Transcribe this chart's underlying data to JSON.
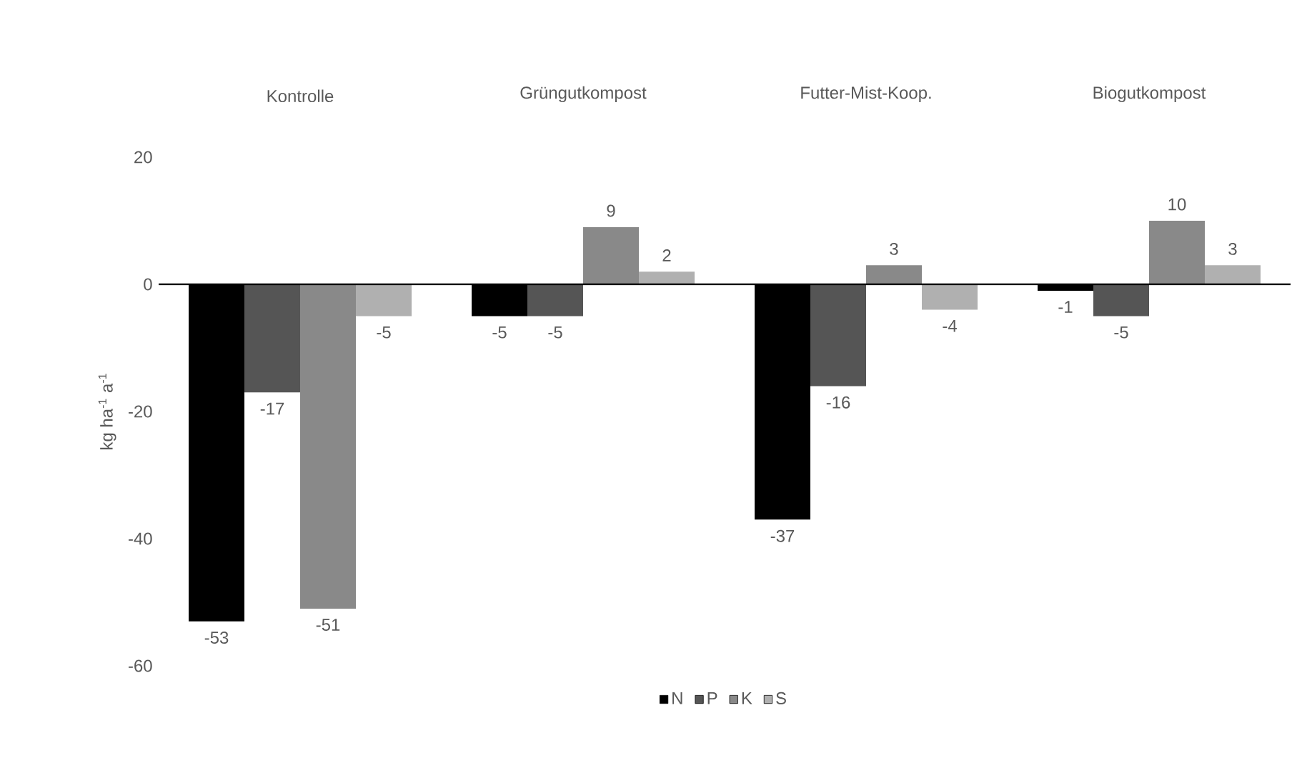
{
  "chart_data": {
    "type": "bar",
    "ylabel": "kg  ha$^{-1}$ a$^{-1}$",
    "categories": [
      "Kontrolle",
      "Grüngutkompost",
      "Futter-Mist-Koop.",
      "Biogutkompost"
    ],
    "series": [
      {
        "name": "N",
        "color": "#000000",
        "values": [
          -53,
          -5,
          -37,
          -1
        ],
        "value_labels": [
          "-53",
          "-5",
          "-37",
          "-1"
        ]
      },
      {
        "name": "P",
        "color": "#555555",
        "values": [
          -17,
          -5,
          -16,
          -5
        ],
        "value_labels": [
          "-17",
          "-5",
          "-16",
          "-5"
        ]
      },
      {
        "name": "K",
        "color": "#898989",
        "values": [
          -51,
          9,
          3,
          10
        ],
        "value_labels": [
          "-51",
          "9",
          "3",
          "10"
        ]
      },
      {
        "name": "S",
        "color": "#b0b0b0",
        "values": [
          -5,
          2,
          -4,
          3
        ],
        "value_labels": [
          "-5",
          "2",
          "-4",
          "3"
        ]
      }
    ],
    "ylim": [
      -60,
      20
    ],
    "yticks": [
      -60,
      -40,
      -20,
      0,
      20
    ],
    "legend": "bottom"
  }
}
